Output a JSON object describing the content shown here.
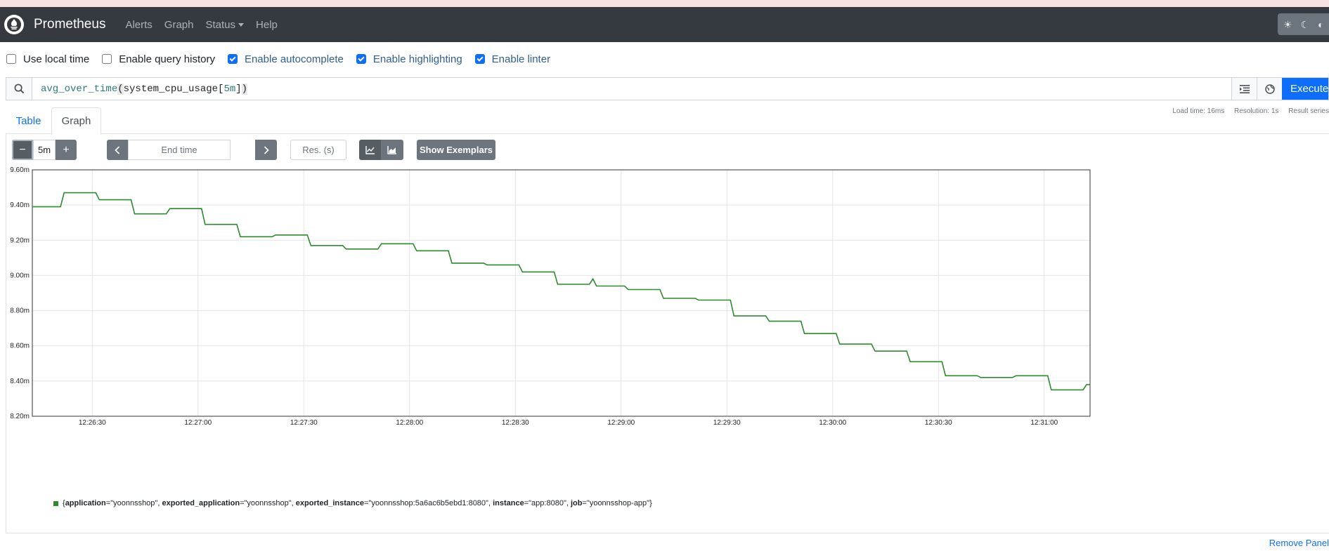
{
  "navbar": {
    "brand": "Prometheus",
    "links": [
      "Alerts",
      "Graph",
      "Status",
      "Help"
    ]
  },
  "options": [
    {
      "label": "Use local time",
      "checked": false
    },
    {
      "label": "Enable query history",
      "checked": false
    },
    {
      "label": "Enable autocomplete",
      "checked": true
    },
    {
      "label": "Enable highlighting",
      "checked": true
    },
    {
      "label": "Enable linter",
      "checked": true
    }
  ],
  "query": {
    "fn": "avg_over_time",
    "metric": "system_cpu_usage",
    "range": "5m",
    "execute_label": "Execute"
  },
  "tabs": {
    "table": "Table",
    "graph": "Graph"
  },
  "stats": {
    "load_time": "Load time: 16ms",
    "resolution": "Resolution: 1s",
    "result_series": "Result series"
  },
  "controls": {
    "range_value": "5m",
    "end_time_placeholder": "End time",
    "resolution_placeholder": "Res. (s)",
    "show_exemplars": "Show Exemplars"
  },
  "chart_data": {
    "type": "line",
    "yticks": [
      "9.60m",
      "9.40m",
      "9.20m",
      "9.00m",
      "8.80m",
      "8.60m",
      "8.40m",
      "8.20m"
    ],
    "xticks": [
      "12:26:30",
      "12:27:00",
      "12:27:30",
      "12:28:00",
      "12:28:30",
      "12:29:00",
      "12:29:30",
      "12:30:00",
      "12:30:30",
      "12:31:00"
    ],
    "ylim": [
      8.2,
      9.6
    ],
    "xlim_seconds": [
      1573,
      1873
    ],
    "grid": true,
    "series": [
      {
        "name": "{application=\"yoonnsshop\", exported_application=\"yoonnsshop\", exported_instance=\"yoonnsshop:5a6ac6b5ebd1:8080\", instance=\"app:8080\", job=\"yoonnsshop-app\"}",
        "color": "#2d8a2d",
        "points": [
          [
            1573,
            9.39
          ],
          [
            1581,
            9.39
          ],
          [
            1582,
            9.47
          ],
          [
            1591,
            9.47
          ],
          [
            1592,
            9.43
          ],
          [
            1601,
            9.43
          ],
          [
            1602,
            9.35
          ],
          [
            1611,
            9.35
          ],
          [
            1612,
            9.38
          ],
          [
            1621,
            9.38
          ],
          [
            1622,
            9.29
          ],
          [
            1631,
            9.29
          ],
          [
            1632,
            9.22
          ],
          [
            1641,
            9.22
          ],
          [
            1642,
            9.23
          ],
          [
            1651,
            9.23
          ],
          [
            1652,
            9.17
          ],
          [
            1661,
            9.17
          ],
          [
            1662,
            9.15
          ],
          [
            1671,
            9.15
          ],
          [
            1672,
            9.18
          ],
          [
            1681,
            9.18
          ],
          [
            1682,
            9.14
          ],
          [
            1691,
            9.14
          ],
          [
            1692,
            9.07
          ],
          [
            1701,
            9.07
          ],
          [
            1702,
            9.06
          ],
          [
            1711,
            9.06
          ],
          [
            1712,
            9.02
          ],
          [
            1721,
            9.02
          ],
          [
            1722,
            8.95
          ],
          [
            1731,
            8.95
          ],
          [
            1732,
            8.98
          ],
          [
            1733,
            8.94
          ],
          [
            1741,
            8.94
          ],
          [
            1742,
            8.92
          ],
          [
            1751,
            8.92
          ],
          [
            1752,
            8.87
          ],
          [
            1761,
            8.87
          ],
          [
            1762,
            8.86
          ],
          [
            1771,
            8.86
          ],
          [
            1772,
            8.77
          ],
          [
            1781,
            8.77
          ],
          [
            1782,
            8.74
          ],
          [
            1791,
            8.74
          ],
          [
            1792,
            8.67
          ],
          [
            1801,
            8.67
          ],
          [
            1802,
            8.61
          ],
          [
            1811,
            8.61
          ],
          [
            1812,
            8.57
          ],
          [
            1821,
            8.57
          ],
          [
            1822,
            8.51
          ],
          [
            1831,
            8.51
          ],
          [
            1832,
            8.43
          ],
          [
            1841,
            8.43
          ],
          [
            1842,
            8.42
          ],
          [
            1851,
            8.42
          ],
          [
            1852,
            8.43
          ],
          [
            1861,
            8.43
          ],
          [
            1862,
            8.35
          ],
          [
            1871,
            8.35
          ],
          [
            1872,
            8.38
          ],
          [
            1873,
            8.38
          ]
        ]
      }
    ]
  },
  "legend": {
    "pairs": [
      {
        "k": "application",
        "v": "\"yoonnsshop\""
      },
      {
        "k": "exported_application",
        "v": "\"yoonnsshop\""
      },
      {
        "k": "exported_instance",
        "v": "\"yoonnsshop:5a6ac6b5ebd1:8080\""
      },
      {
        "k": "instance",
        "v": "\"app:8080\""
      },
      {
        "k": "job",
        "v": "\"yoonnsshop-app\""
      }
    ]
  },
  "remove_panel": "Remove Panel"
}
